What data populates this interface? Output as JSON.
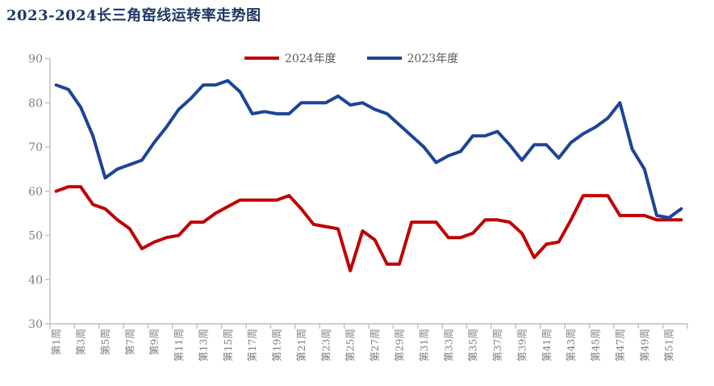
{
  "title": {
    "text": "2023-2024长三角窑线运转率走势图",
    "color": "#1F3864"
  },
  "legend": [
    {
      "label": "2024年度",
      "color": "#C00000"
    },
    {
      "label": "2023年度",
      "color": "#1C4596"
    }
  ],
  "chart_data": {
    "type": "line",
    "title": "2023-2024长三角窑线运转率走势图",
    "categories": [
      "第1周",
      "第2周",
      "第3周",
      "第4周",
      "第5周",
      "第6周",
      "第7周",
      "第8周",
      "第9周",
      "第10周",
      "第11周",
      "第12周",
      "第13周",
      "第14周",
      "第15周",
      "第16周",
      "第17周",
      "第18周",
      "第19周",
      "第20周",
      "第21周",
      "第22周",
      "第23周",
      "第24周",
      "第25周",
      "第26周",
      "第27周",
      "第28周",
      "第29周",
      "第30周",
      "第31周",
      "第32周",
      "第33周",
      "第34周",
      "第35周",
      "第36周",
      "第37周",
      "第38周",
      "第39周",
      "第40周",
      "第41周",
      "第42周",
      "第43周",
      "第44周",
      "第45周",
      "第46周",
      "第47周",
      "第48周",
      "第49周",
      "第50周",
      "第51周",
      "第52周"
    ],
    "x_tick_labels": [
      "第1周",
      "第3周",
      "第5周",
      "第7周",
      "第9周",
      "第11周",
      "第13周",
      "第15周",
      "第17周",
      "第19周",
      "第21周",
      "第23周",
      "第25周",
      "第27周",
      "第29周",
      "第31周",
      "第33周",
      "第35周",
      "第37周",
      "第39周",
      "第41周",
      "第43周",
      "第45周",
      "第47周",
      "第49周",
      "第51周"
    ],
    "series": [
      {
        "name": "2024年度",
        "color": "#C00000",
        "values": [
          60,
          61,
          61,
          57,
          56,
          53.5,
          51.5,
          47,
          48.5,
          49.5,
          50,
          53,
          53,
          55,
          56.5,
          58,
          58,
          58,
          58,
          59,
          56,
          52.5,
          52,
          51.5,
          42,
          51,
          49,
          43.5,
          43.5,
          53,
          53,
          53,
          49.5,
          49.5,
          50.5,
          53.5,
          53.5,
          53,
          50.5,
          45,
          48,
          48.5,
          53.5,
          59,
          59,
          59,
          54.5,
          54.5,
          54.5,
          53.5,
          53.5,
          53.5
        ]
      },
      {
        "name": "2023年度",
        "color": "#1C4596",
        "values": [
          84,
          83,
          79,
          72.5,
          63,
          65,
          66,
          67,
          71,
          74.5,
          78.5,
          81,
          84,
          84,
          85,
          82.5,
          77.5,
          78,
          77.5,
          77.5,
          80,
          80,
          80,
          81.5,
          79.5,
          80,
          78.5,
          77.5,
          75,
          72.5,
          70,
          66.5,
          68,
          69,
          72.5,
          72.5,
          73.5,
          70.5,
          67,
          70.5,
          70.5,
          67.5,
          71,
          73,
          74.5,
          76.5,
          80,
          69.5,
          65,
          54.5,
          54,
          56
        ]
      }
    ],
    "ylim": [
      30,
      90
    ],
    "y_ticks": [
      90,
      80,
      70,
      60,
      50,
      40,
      30
    ],
    "grid": false,
    "legend_position": "top-center",
    "axis_color": "#BFBFBF",
    "tick_label_color": "#808080"
  }
}
